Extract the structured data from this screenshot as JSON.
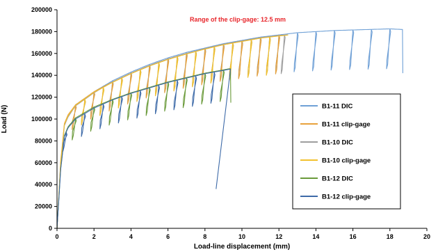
{
  "chart_data": {
    "type": "line",
    "title": "",
    "xlabel": "Load-line displacement (mm)",
    "ylabel": "Load (N)",
    "xlim": [
      0,
      20
    ],
    "ylim": [
      0,
      200000
    ],
    "x_ticks": [
      "0",
      "2",
      "4",
      "6",
      "8",
      "10",
      "12",
      "14",
      "16",
      "18",
      "20"
    ],
    "y_ticks": [
      "0",
      "20000",
      "40000",
      "60000",
      "80000",
      "100000",
      "120000",
      "140000",
      "160000",
      "180000",
      "200000"
    ],
    "grid": false,
    "legend_position": "right",
    "annotation": {
      "text": "Range of the clip-gage: 12.5 mm",
      "color": "#e8262b"
    },
    "series": [
      {
        "name": "B1-11 DIC",
        "color": "#6fa0d6",
        "x": [
          0,
          0.2,
          0.4,
          0.6,
          1.0,
          2.0,
          3.0,
          4.0,
          5.0,
          6.0,
          7.0,
          8.0,
          9.0,
          10.0,
          11.0,
          12.0,
          12.5,
          13.0,
          14.0,
          15.0,
          16.0,
          17.0,
          18.0,
          18.6
        ],
        "y": [
          0,
          60000,
          95000,
          103000,
          113000,
          125000,
          135000,
          143000,
          150000,
          156000,
          161000,
          165000,
          169000,
          172000,
          175000,
          177000,
          178000,
          179000,
          180000,
          181000,
          181500,
          182000,
          182500,
          182000
        ],
        "unload_x": [
          1.0,
          2.0,
          3.0,
          4.0,
          5.0,
          6.0,
          7.0,
          8.0,
          9.0,
          10.0,
          11.0,
          12.0,
          13.0,
          14.0,
          15.0,
          16.0,
          17.0,
          18.0
        ],
        "final_drop": [
          18.7,
          142000
        ]
      },
      {
        "name": "B1-11 clip-gage",
        "color": "#e8a23c",
        "x": [
          0,
          0.2,
          0.4,
          0.6,
          1.0,
          2.0,
          3.0,
          4.0,
          5.0,
          6.0,
          7.0,
          8.0,
          9.0,
          10.0,
          11.0,
          12.0,
          12.5
        ],
        "y": [
          0,
          62000,
          96000,
          104000,
          113000,
          125000,
          134000,
          142000,
          149000,
          155000,
          160000,
          164000,
          168000,
          171000,
          174000,
          176500,
          177000
        ],
        "unload_x": [
          1.0,
          2.0,
          3.0,
          4.0,
          5.0,
          6.0,
          7.0,
          8.0,
          9.0,
          10.0,
          11.0,
          12.0
        ],
        "final_drop": null
      },
      {
        "name": "B1-10 DIC",
        "color": "#9e9e9e",
        "x": [
          0,
          0.2,
          0.4,
          0.6,
          1.0,
          2.0,
          3.0,
          4.0,
          5.0,
          6.0,
          7.0,
          8.0,
          9.0,
          10.0,
          11.0,
          12.0,
          12.5
        ],
        "y": [
          0,
          58000,
          94000,
          102000,
          112000,
          124000,
          134000,
          142000,
          149000,
          155000,
          160000,
          164500,
          168500,
          171500,
          174500,
          176500,
          177000
        ],
        "unload_x": [
          1.5,
          2.5,
          3.5,
          4.5,
          5.5,
          6.5,
          7.5,
          8.5,
          9.5,
          10.5,
          11.5,
          12.3
        ],
        "final_drop": null
      },
      {
        "name": "B1-10 clip-gage",
        "color": "#f2c12e",
        "x": [
          0,
          0.2,
          0.4,
          0.6,
          1.0,
          2.0,
          3.0,
          4.0,
          5.0,
          6.0,
          7.0,
          8.0,
          9.0,
          10.0,
          11.0,
          12.0,
          12.5
        ],
        "y": [
          0,
          60000,
          95000,
          103000,
          112500,
          124500,
          133500,
          141500,
          148500,
          154500,
          159500,
          164000,
          168000,
          171000,
          174000,
          176000,
          176800
        ],
        "unload_x": [
          1.5,
          2.5,
          3.5,
          4.5,
          5.5,
          6.5,
          7.5,
          8.5,
          9.5,
          10.5,
          11.5
        ],
        "final_drop": null
      },
      {
        "name": "B1-12 DIC",
        "color": "#6a9a3a",
        "x": [
          0,
          0.2,
          0.4,
          0.6,
          1.0,
          2.0,
          3.0,
          4.0,
          5.0,
          6.0,
          7.0,
          8.0,
          9.0,
          9.3
        ],
        "y": [
          0,
          55000,
          85000,
          93000,
          101000,
          111000,
          118000,
          124000,
          129000,
          134000,
          138000,
          142000,
          145000,
          146000
        ],
        "unload_x": [
          1.0,
          2.0,
          3.0,
          4.0,
          5.0,
          6.0,
          7.0,
          8.0,
          9.0
        ],
        "final_drop": [
          9.4,
          115000
        ]
      },
      {
        "name": "B1-12 clip-gage",
        "color": "#3d6aa8",
        "x": [
          0,
          0.2,
          0.4,
          0.6,
          1.0,
          2.0,
          3.0,
          4.0,
          5.0,
          6.0,
          7.0,
          8.0,
          9.0,
          9.3
        ],
        "y": [
          0,
          54000,
          84000,
          92000,
          100000,
          110000,
          117500,
          123500,
          128500,
          133500,
          137500,
          141500,
          144500,
          145500
        ],
        "unload_x": [
          0.5,
          1.5,
          2.5,
          3.5,
          4.5,
          5.5,
          6.5,
          7.5,
          8.5
        ],
        "final_drop": [
          8.6,
          36000
        ]
      }
    ]
  }
}
